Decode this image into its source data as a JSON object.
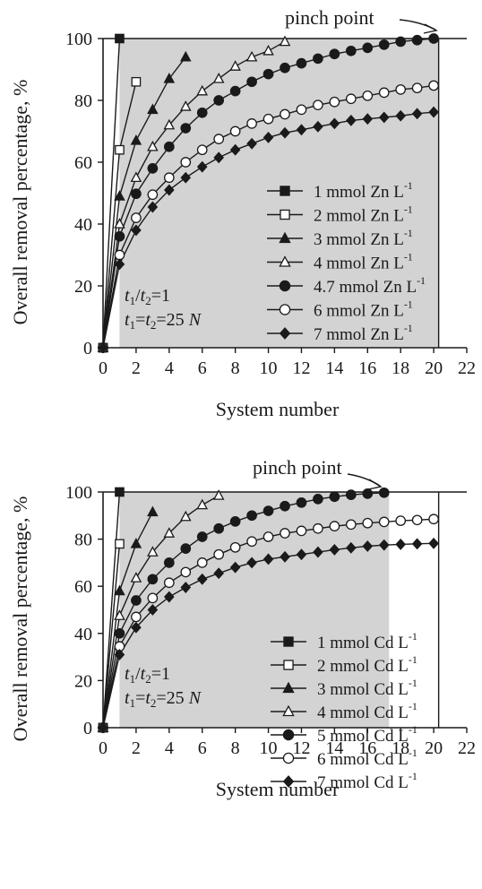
{
  "chart_data": [
    {
      "type": "line",
      "xlabel": "System number",
      "ylabel": "Overall removal percentage, %",
      "xlim": [
        0,
        22
      ],
      "ylim": [
        0,
        100
      ],
      "xticks": [
        0,
        2,
        4,
        6,
        8,
        10,
        12,
        14,
        16,
        18,
        20,
        22
      ],
      "yticks": [
        0,
        20,
        40,
        60,
        80,
        100
      ],
      "shaded_region_x": [
        1,
        20.3
      ],
      "shade_color": "#d3d3d3",
      "legend_position": "lower-right",
      "annotation": "pinch  point",
      "condition_lines": [
        {
          "italic_a": "t",
          "sub_a": "1",
          "slash": "/",
          "italic_b": "t",
          "sub_b": "2",
          "rest": "=1"
        },
        {
          "italic_a": "t",
          "sub_a": "1",
          "eq": "=",
          "italic_b": "t",
          "sub_b": "2",
          "rest": "=25 ",
          "italic_c": "N"
        }
      ],
      "series": [
        {
          "name": "1 mmol Zn L",
          "superscript": "-1",
          "marker": "square-filled",
          "max_step": 1,
          "x": [
            0,
            1
          ],
          "y": [
            0,
            100
          ]
        },
        {
          "name": "2 mmol Zn L",
          "superscript": "-1",
          "marker": "square-open",
          "max_step": 2,
          "x": [
            0,
            1,
            2
          ],
          "y": [
            0,
            64,
            86
          ]
        },
        {
          "name": "3 mmol Zn L",
          "superscript": "-1",
          "marker": "triangle-filled",
          "max_step": 5,
          "x": [
            0,
            1,
            2,
            3,
            4,
            5
          ],
          "y": [
            0,
            49,
            67,
            77,
            87,
            94
          ]
        },
        {
          "name": "4 mmol Zn L",
          "superscript": "-1",
          "marker": "triangle-open",
          "max_step": 11,
          "x": [
            0,
            1,
            2,
            3,
            4,
            5,
            6,
            7,
            8,
            9,
            10,
            11
          ],
          "y": [
            0,
            40,
            55,
            65,
            72,
            78,
            83,
            87,
            91,
            94,
            96,
            99
          ]
        },
        {
          "name": "4.7 mmol Zn L",
          "superscript": "-1",
          "marker": "circle-filled",
          "max_step": 20,
          "x": [
            0,
            1,
            2,
            3,
            4,
            5,
            6,
            7,
            8,
            9,
            10,
            11,
            12,
            13,
            14,
            15,
            16,
            17,
            18,
            19,
            20
          ],
          "y": [
            0,
            36,
            49.8,
            58,
            65,
            71,
            76,
            80,
            83,
            86,
            88.5,
            90.5,
            92,
            93.5,
            95,
            96,
            97,
            98,
            99,
            99.5,
            100
          ]
        },
        {
          "name": "6 mmol Zn L",
          "superscript": "-1",
          "marker": "circle-open",
          "max_step": 20,
          "x": [
            0,
            1,
            2,
            3,
            4,
            5,
            6,
            7,
            8,
            9,
            10,
            11,
            12,
            13,
            14,
            15,
            16,
            17,
            18,
            19,
            20
          ],
          "y": [
            0,
            30,
            42,
            49.5,
            55,
            60,
            64,
            67.5,
            70,
            72.5,
            74,
            75.5,
            77,
            78.5,
            79.5,
            80.5,
            81.5,
            82.5,
            83.5,
            84,
            84.8
          ]
        },
        {
          "name": "7 mmol Zn L",
          "superscript": "-1",
          "marker": "diamond-filled",
          "max_step": 20,
          "x": [
            0,
            1,
            2,
            3,
            4,
            5,
            6,
            7,
            8,
            9,
            10,
            11,
            12,
            13,
            14,
            15,
            16,
            17,
            18,
            19,
            20
          ],
          "y": [
            0,
            27,
            38,
            45.5,
            51,
            55,
            58.5,
            61.5,
            64,
            66,
            68,
            69.5,
            70.5,
            71.5,
            72.5,
            73.5,
            74,
            74.5,
            75,
            75.7,
            76.2
          ]
        }
      ]
    },
    {
      "type": "line",
      "xlabel": "System number",
      "ylabel": "Overall removal percentage, %",
      "xlim": [
        0,
        22
      ],
      "ylim": [
        0,
        100
      ],
      "xticks": [
        0,
        2,
        4,
        6,
        8,
        10,
        12,
        14,
        16,
        18,
        20,
        22
      ],
      "yticks": [
        0,
        20,
        40,
        60,
        80,
        100
      ],
      "shaded_region_x": [
        1,
        17.3
      ],
      "shade_color": "#d3d3d3",
      "legend_position": "lower-right",
      "annotation": "pinch  point",
      "condition_lines": [
        {
          "italic_a": "t",
          "sub_a": "1",
          "slash": "/",
          "italic_b": "t",
          "sub_b": "2",
          "rest": "=1"
        },
        {
          "italic_a": "t",
          "sub_a": "1",
          "eq": "=",
          "italic_b": "t",
          "sub_b": "2",
          "rest": "=25 ",
          "italic_c": "N"
        }
      ],
      "series": [
        {
          "name": "1 mmol Cd L",
          "superscript": "-1",
          "marker": "square-filled",
          "max_step": 1,
          "x": [
            0,
            1
          ],
          "y": [
            0,
            100
          ]
        },
        {
          "name": "2 mmol Cd L",
          "superscript": "-1",
          "marker": "square-open",
          "max_step": 1,
          "x": [
            0,
            1
          ],
          "y": [
            0,
            78
          ]
        },
        {
          "name": "3 mmol Cd L",
          "superscript": "-1",
          "marker": "triangle-filled",
          "max_step": 3,
          "x": [
            0,
            1,
            2,
            3
          ],
          "y": [
            0,
            58,
            78,
            91.5
          ]
        },
        {
          "name": "4 mmol Cd L",
          "superscript": "-1",
          "marker": "triangle-open",
          "max_step": 7,
          "x": [
            0,
            1,
            2,
            3,
            4,
            5,
            6,
            7
          ],
          "y": [
            0,
            47.5,
            63.5,
            74.5,
            82.5,
            89.5,
            94.5,
            98.5
          ]
        },
        {
          "name": "5 mmol Cd L",
          "superscript": "-1",
          "marker": "circle-filled",
          "max_step": 17,
          "x": [
            0,
            1,
            2,
            3,
            4,
            5,
            6,
            7,
            8,
            9,
            10,
            11,
            12,
            13,
            14,
            15,
            16,
            17
          ],
          "y": [
            0,
            40,
            54,
            63,
            70,
            76,
            81,
            84.5,
            87.5,
            90,
            92,
            94,
            95.5,
            97,
            98,
            98.8,
            99.3,
            99.7
          ]
        },
        {
          "name": "6 mmol Cd L",
          "superscript": "-1",
          "marker": "circle-open",
          "max_step": 20,
          "x": [
            0,
            1,
            2,
            3,
            4,
            5,
            6,
            7,
            8,
            9,
            10,
            11,
            12,
            13,
            14,
            15,
            16,
            17,
            18,
            19,
            20
          ],
          "y": [
            0,
            34.5,
            47,
            55,
            61.5,
            66,
            70,
            73.5,
            76.5,
            79,
            81,
            82.5,
            83.5,
            84.5,
            85.5,
            86.2,
            86.8,
            87.3,
            87.8,
            88.1,
            88.5
          ]
        },
        {
          "name": "7 mmol Cd L",
          "superscript": "-1",
          "marker": "diamond-filled",
          "max_step": 20,
          "x": [
            0,
            1,
            2,
            3,
            4,
            5,
            6,
            7,
            8,
            9,
            10,
            11,
            12,
            13,
            14,
            15,
            16,
            17,
            18,
            19,
            20
          ],
          "y": [
            0,
            31,
            42.5,
            50,
            55.5,
            59.5,
            63,
            65.5,
            68,
            70,
            71.5,
            72.5,
            73.5,
            74.5,
            75.5,
            76.3,
            77,
            77.5,
            77.8,
            78,
            78.2
          ]
        }
      ]
    }
  ]
}
